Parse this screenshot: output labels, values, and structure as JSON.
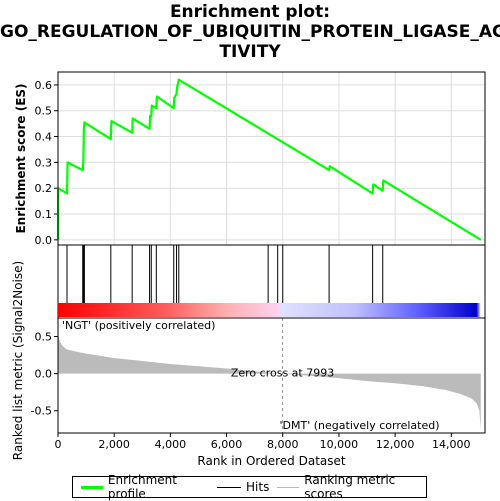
{
  "title_lines": [
    "Enrichment plot:",
    "GO_REGULATION_OF_UBIQUITIN_PROTEIN_LIGASE_AC",
    "TIVITY"
  ],
  "legend": [
    {
      "label": "Enrichment profile",
      "color": "#00ff00"
    },
    {
      "label": "Hits",
      "color": "#000000"
    },
    {
      "label": "Ranking metric scores",
      "color": "#bbbbbb"
    }
  ],
  "chart_data": [
    {
      "type": "line",
      "ylabel": "Enrichment score (ES)",
      "xlim": [
        0,
        15200
      ],
      "ylim": [
        -0.02,
        0.65
      ],
      "yticks": [
        0.0,
        0.1,
        0.2,
        0.3,
        0.4,
        0.5,
        0.6
      ],
      "ytick_labels": [
        "0.0",
        "0.1",
        "0.2",
        "0.3",
        "0.4",
        "0.5",
        "0.6"
      ],
      "grid": true,
      "series": [
        {
          "color": "#00ff00",
          "x": [
            0,
            5,
            320,
            340,
            880,
            900,
            910,
            920,
            940,
            1880,
            1900,
            2640,
            2660,
            3260,
            3280,
            3320,
            3340,
            3500,
            3520,
            4120,
            4140,
            4220,
            4240,
            4300,
            9650,
            9670,
            11200,
            11220,
            11560,
            11580,
            15050
          ],
          "y": [
            0.0,
            0.2,
            0.18,
            0.3,
            0.27,
            0.3,
            0.36,
            0.42,
            0.455,
            0.39,
            0.46,
            0.415,
            0.47,
            0.43,
            0.48,
            0.48,
            0.52,
            0.51,
            0.555,
            0.51,
            0.55,
            0.565,
            0.59,
            0.62,
            0.27,
            0.285,
            0.18,
            0.215,
            0.19,
            0.23,
            0.0
          ]
        }
      ]
    },
    {
      "type": "hits",
      "hit_positions": [
        320,
        880,
        910,
        940,
        1880,
        2640,
        3260,
        3320,
        3500,
        4120,
        4220,
        4300,
        7480,
        7820,
        8000,
        9650,
        11200,
        11560
      ]
    },
    {
      "type": "area",
      "ylabel": "Ranked list metric (Signal2Noise)",
      "xlabel": "Rank in Ordered Dataset",
      "xlim": [
        0,
        15200
      ],
      "ylim": [
        -0.8,
        0.75
      ],
      "xticks": [
        0,
        2000,
        4000,
        6000,
        8000,
        10000,
        12000,
        14000
      ],
      "xtick_labels": [
        "0",
        "2,000",
        "4,000",
        "6,000",
        "8,000",
        "10,000",
        "12,000",
        "14,000"
      ],
      "yticks": [
        0.5,
        0.0,
        -0.5
      ],
      "ytick_labels": [
        "0.5",
        "0.0",
        "-0.5"
      ],
      "zero_cross": 7993,
      "zero_cross_label": "Zero cross at 7993",
      "pos_label": "'NGT' (positively correlated)",
      "neg_label": "'DMT' (negatively correlated)",
      "x": [
        0,
        50,
        150,
        300,
        600,
        1000,
        1500,
        2000,
        3000,
        4000,
        5000,
        6000,
        7000,
        7993,
        9000,
        10000,
        11000,
        12000,
        13000,
        13800,
        14300,
        14700,
        14900,
        15000,
        15050
      ],
      "y": [
        0.55,
        0.45,
        0.38,
        0.33,
        0.3,
        0.27,
        0.24,
        0.21,
        0.17,
        0.13,
        0.1,
        0.07,
        0.03,
        0.0,
        -0.03,
        -0.06,
        -0.1,
        -0.13,
        -0.17,
        -0.22,
        -0.27,
        -0.33,
        -0.4,
        -0.5,
        -0.75
      ]
    }
  ]
}
